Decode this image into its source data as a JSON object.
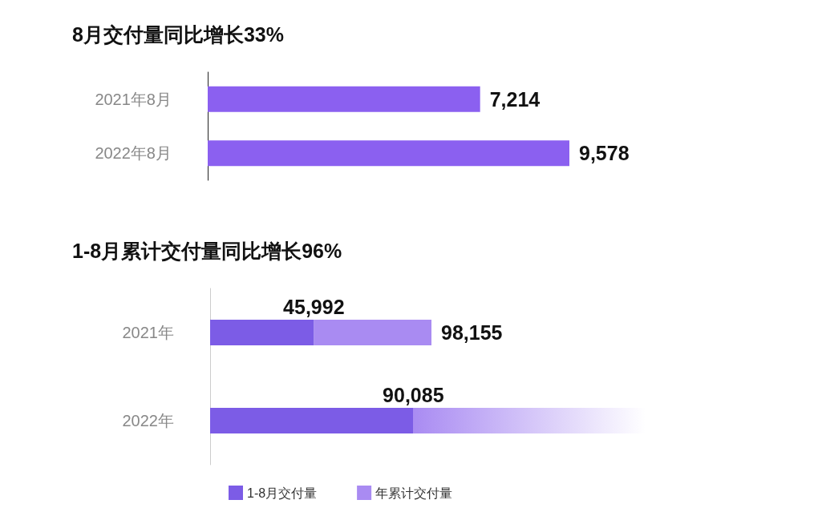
{
  "chart_data": [
    {
      "type": "bar",
      "orientation": "horizontal",
      "title": "8月交付量同比增长33%",
      "categories": [
        "2021年8月",
        "2022年8月"
      ],
      "values": [
        7214,
        9578
      ],
      "value_labels": [
        "7,214",
        "9,578"
      ],
      "color": "#8b60f0"
    },
    {
      "type": "bar",
      "orientation": "horizontal",
      "stacked": true,
      "title": "1-8月累计交付量同比增长96%",
      "categories": [
        "2021年",
        "2022年"
      ],
      "series": [
        {
          "name": "1-8月交付量",
          "color": "#7c5ce6",
          "values": [
            45992,
            90085
          ],
          "value_labels": [
            "45,992",
            "90,085"
          ]
        },
        {
          "name": "年累计交付量",
          "color": "#a98bf2",
          "values": [
            52163,
            null
          ]
        }
      ],
      "totals": [
        "98,155",
        null
      ],
      "legend": "bottom"
    }
  ]
}
